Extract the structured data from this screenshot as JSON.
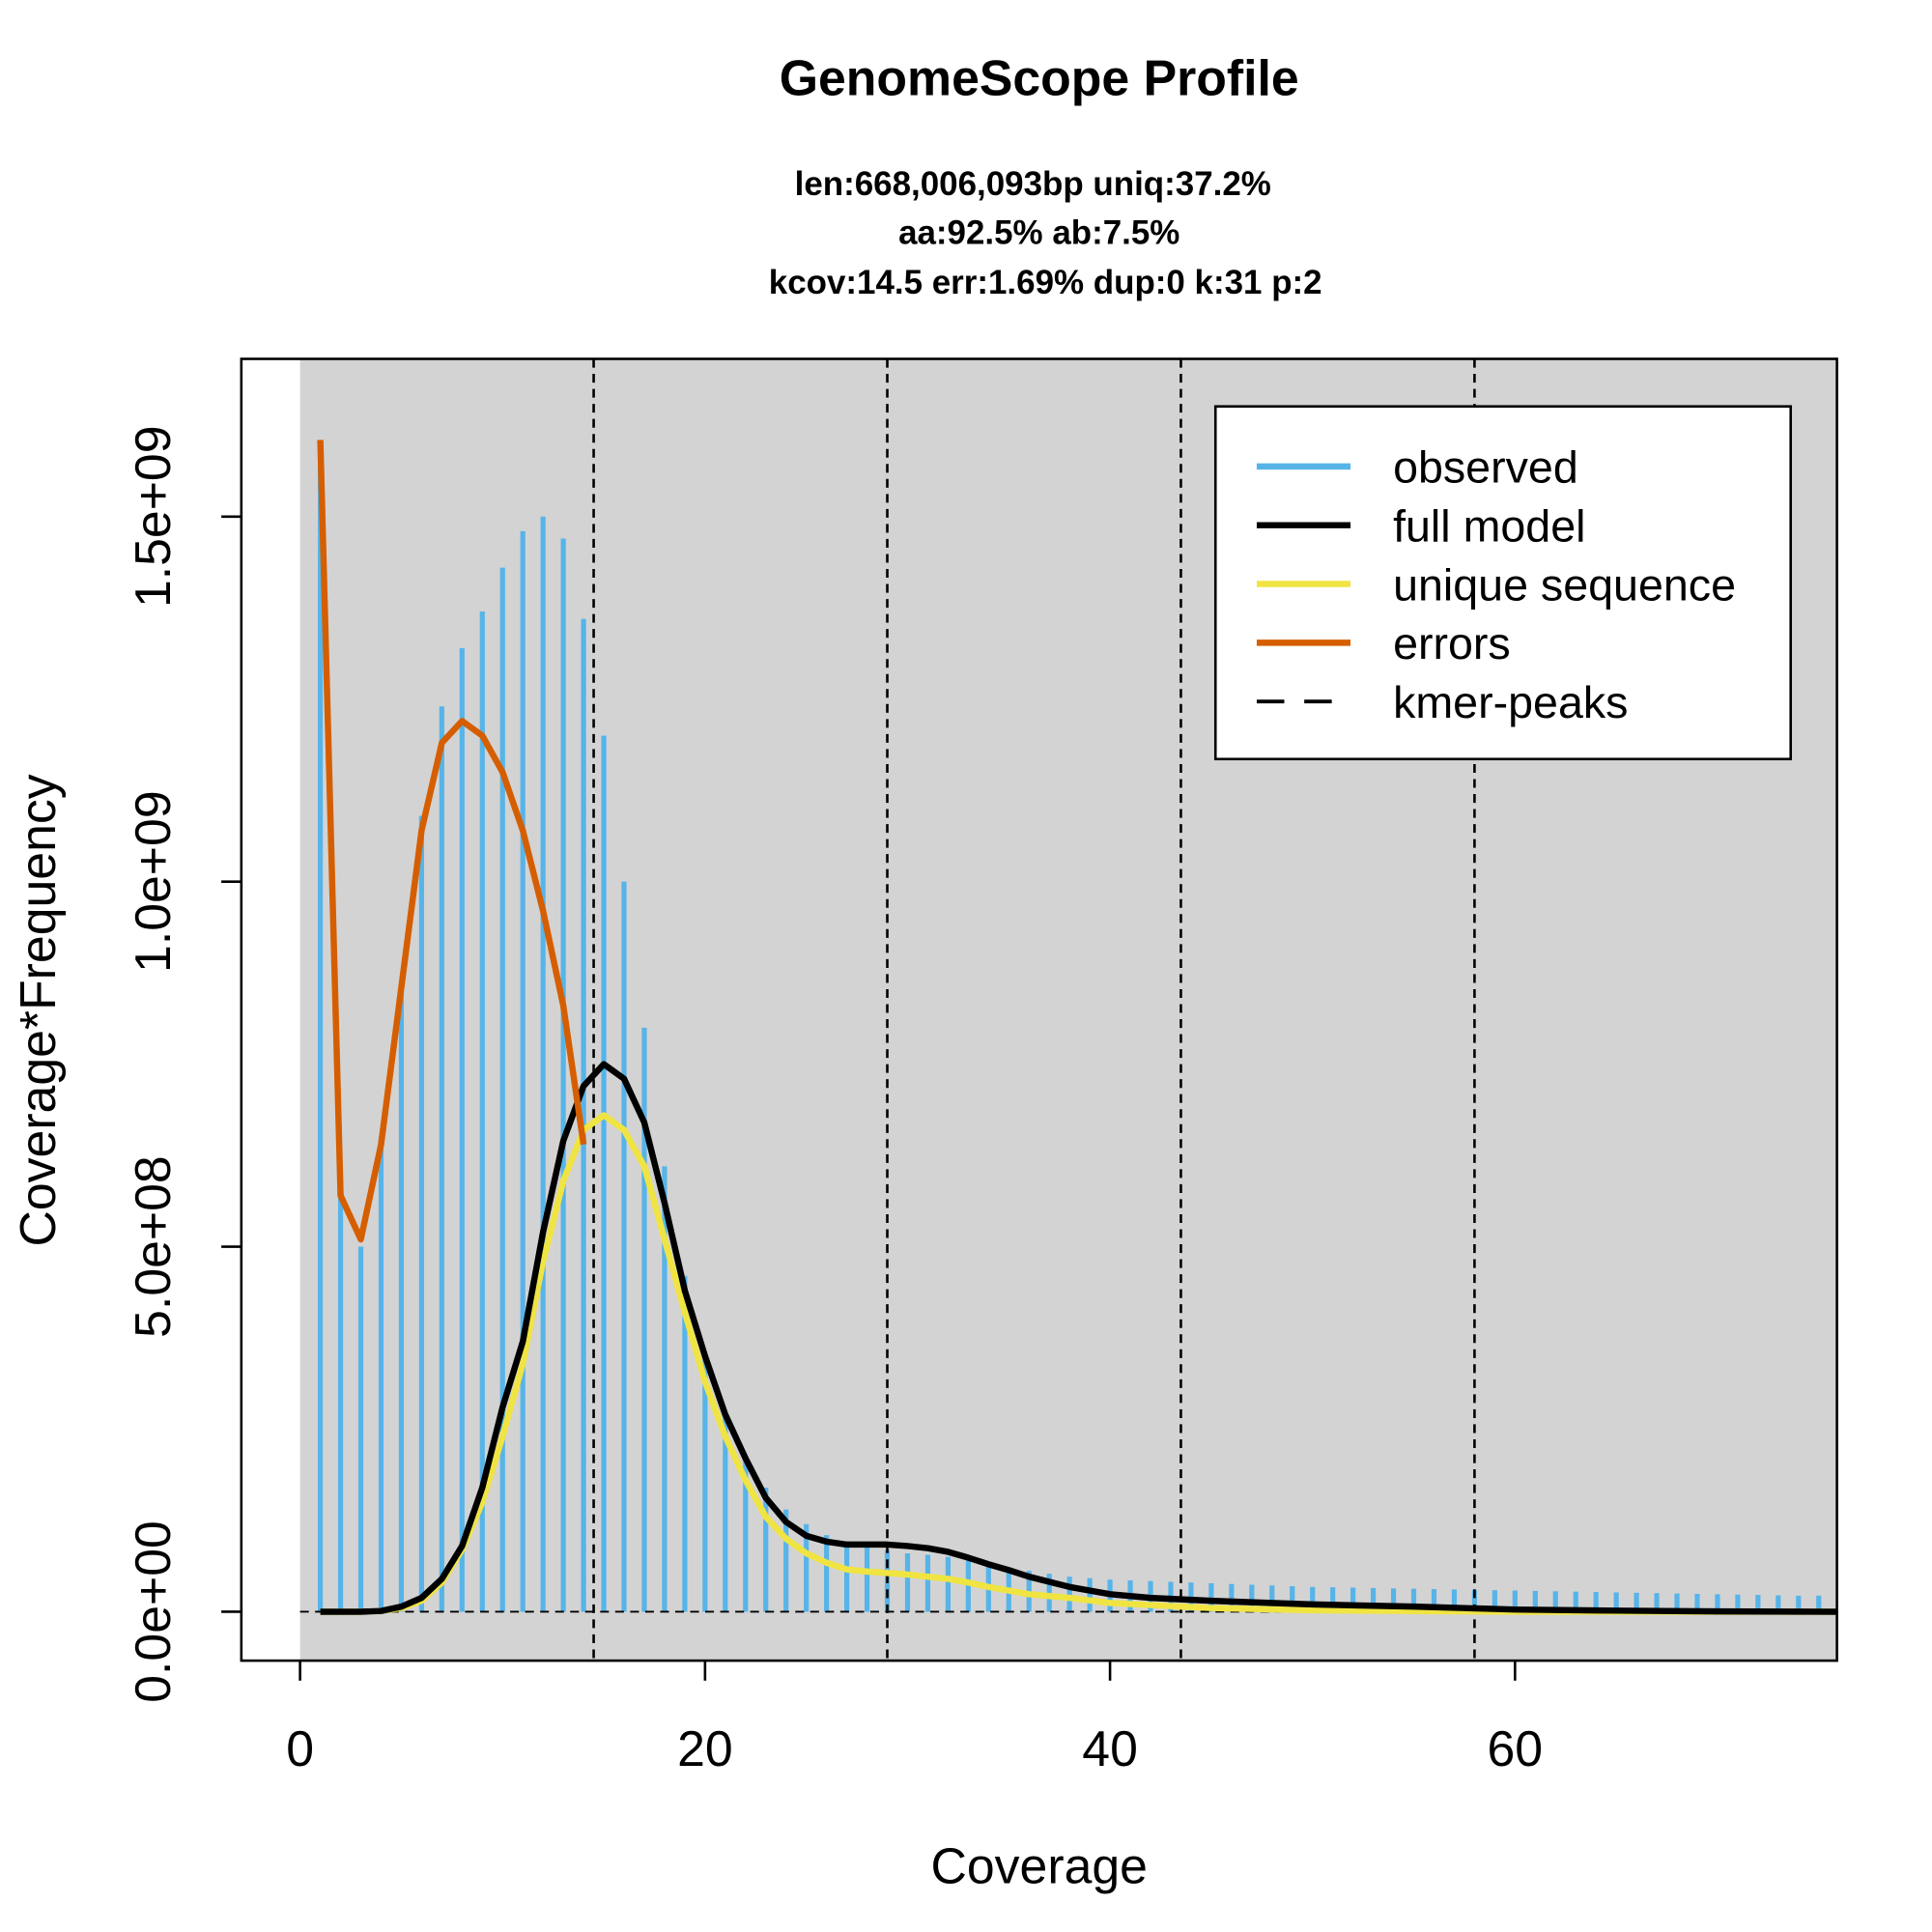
{
  "chart_data": {
    "type": "bar+line",
    "title": "GenomeScope Profile",
    "subtitle_lines": [
      "len:668,006,093bp uniq:37.2%",
      "aa:92.5% ab:7.5%",
      "kcov:14.5 err:1.69%  dup:0  k:31 p:2"
    ],
    "xlabel": "Coverage",
    "ylabel": "Coverage*Frequency",
    "xlim": [
      -2.9,
      75.9
    ],
    "ylim": [
      -67000000,
      1716000000
    ],
    "xticks": [
      0,
      20,
      40,
      60
    ],
    "xtick_labels": [
      "0",
      "20",
      "40",
      "60"
    ],
    "yticks": [
      0,
      500000000,
      1000000000,
      1500000000
    ],
    "ytick_labels": [
      "0.0e+00",
      "5.0e+08",
      "1.0e+09",
      "1.5e+09"
    ],
    "legend_placement": "top-right",
    "legend": [
      {
        "label": "observed",
        "color": "#56B4E9",
        "style": "solid"
      },
      {
        "label": "full model",
        "color": "#000000",
        "style": "solid"
      },
      {
        "label": "unique sequence",
        "color": "#F0E442",
        "style": "solid"
      },
      {
        "label": "errors",
        "color": "#D55E00",
        "style": "solid"
      },
      {
        "label": "kmer-peaks",
        "color": "#000000",
        "style": "dashed"
      }
    ],
    "kmer_peaks": [
      14.5,
      29,
      43.5,
      58
    ],
    "observed": {
      "x": [
        1,
        2,
        3,
        4,
        5,
        6,
        7,
        8,
        9,
        10,
        11,
        12,
        13,
        14,
        15,
        16,
        17,
        18,
        19,
        20,
        21,
        22,
        23,
        24,
        25,
        26,
        27,
        28,
        29,
        30,
        31,
        32,
        33,
        34,
        35,
        36,
        37,
        38,
        39,
        40,
        41,
        42,
        43,
        44,
        45,
        46,
        47,
        48,
        49,
        50,
        51,
        52,
        53,
        54,
        55,
        56,
        57,
        58,
        59,
        60,
        61,
        62,
        63,
        64,
        65,
        66,
        67,
        68,
        69,
        70,
        71,
        72,
        73,
        74,
        75
      ],
      "values": [
        1580000000,
        600000000,
        500000000,
        650000000,
        850000000,
        1090000000,
        1240000000,
        1320000000,
        1370000000,
        1430000000,
        1480000000,
        1500000000,
        1470000000,
        1360000000,
        1200000000,
        1000000000,
        800000000,
        610000000,
        460000000,
        350000000,
        270000000,
        210000000,
        170000000,
        140000000,
        120000000,
        105000000,
        95000000,
        90000000,
        85000000,
        80000000,
        78000000,
        75000000,
        70000000,
        65000000,
        60000000,
        56000000,
        52000000,
        48000000,
        46000000,
        44000000,
        43000000,
        42000000,
        41000000,
        40000000,
        39000000,
        38000000,
        37000000,
        36000000,
        35000000,
        34000000,
        33500000,
        33000000,
        32500000,
        32000000,
        31500000,
        31000000,
        30500000,
        30000000,
        29500000,
        29000000,
        28500000,
        28000000,
        27500000,
        27000000,
        26500000,
        26000000,
        25500000,
        25000000,
        24500000,
        24000000,
        23500000,
        23000000,
        22500000,
        22000000,
        22000000
      ]
    },
    "full_model": {
      "x": [
        1,
        2,
        3,
        4,
        5,
        6,
        7,
        8,
        9,
        10,
        11,
        12,
        13,
        14,
        15,
        16,
        17,
        18,
        19,
        20,
        21,
        22,
        23,
        24,
        25,
        26,
        27,
        28,
        29,
        30,
        31,
        32,
        33,
        34,
        35,
        36,
        37,
        38,
        39,
        40,
        42,
        45,
        50,
        55,
        60,
        65,
        70,
        75.9
      ],
      "values": [
        0,
        0,
        0,
        1000000,
        7000000,
        19000000,
        45000000,
        90000000,
        170000000,
        280000000,
        370000000,
        520000000,
        645000000,
        720000000,
        750000000,
        730000000,
        670000000,
        560000000,
        440000000,
        350000000,
        270000000,
        210000000,
        156000000,
        123000000,
        104000000,
        96000000,
        92000000,
        92000000,
        92000000,
        90000000,
        87000000,
        82000000,
        74000000,
        65000000,
        57000000,
        48000000,
        41000000,
        34000000,
        29000000,
        24000000,
        19000000,
        15000000,
        10000000,
        7000000,
        3000000,
        1500000,
        500000,
        0
      ]
    },
    "unique_sequence": {
      "x": [
        1,
        2,
        3,
        4,
        5,
        6,
        7,
        8,
        9,
        10,
        11,
        12,
        13,
        14,
        15,
        16,
        17,
        18,
        19,
        20,
        21,
        22,
        23,
        24,
        25,
        26,
        27,
        28,
        29,
        30,
        31,
        32,
        33,
        34,
        35,
        36,
        38,
        40,
        45,
        50,
        60,
        75.9
      ],
      "values": [
        0,
        0,
        0,
        1000000,
        5000000,
        15000000,
        40000000,
        85000000,
        150000000,
        240000000,
        340000000,
        480000000,
        590000000,
        660000000,
        680000000,
        660000000,
        610000000,
        510000000,
        410000000,
        315000000,
        240000000,
        180000000,
        130000000,
        100000000,
        80000000,
        67000000,
        58000000,
        55000000,
        53000000,
        51000000,
        48000000,
        45000000,
        40000000,
        34000000,
        29000000,
        24000000,
        19000000,
        12000000,
        5000000,
        2000000,
        0,
        0
      ]
    },
    "errors": {
      "x": [
        1,
        2,
        3,
        4,
        5,
        6,
        7,
        8,
        9,
        10,
        11,
        12,
        13,
        14
      ],
      "values": [
        1605000000,
        570000000,
        510000000,
        640000000,
        855000000,
        1070000000,
        1190000000,
        1220000000,
        1200000000,
        1150000000,
        1070000000,
        960000000,
        830000000,
        640000000
      ]
    }
  }
}
